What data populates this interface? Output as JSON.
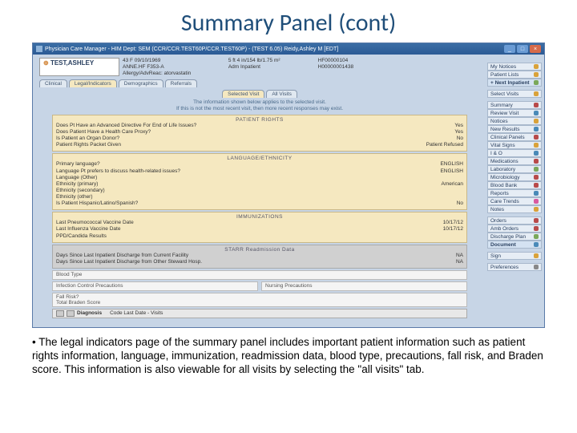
{
  "slide": {
    "title": "Summary Panel (cont)",
    "bullet": "• The legal indicators page of the summary panel includes important patient information such as patient rights information, language, immunization, readmission data, blood type, precautions, fall risk, and Braden score. This information is also viewable for all visits by selecting the \"all visits\" tab."
  },
  "window": {
    "title": "Physician Care Manager - HIM Dept: SEM (CCR/CCR.TEST60P/CCR.TEST60P) - (TEST 6.05)  Reidy,Ashley M [EDT]"
  },
  "patient": {
    "name": "TEST,ASHLEY",
    "line1": "43 F 09/10/1969",
    "line2": "ANNE.HF F353-A",
    "line3": "Allergy/AdvReac: atorvastatin",
    "vitals": "5 ft 4 in/154 lb/1.75 m²",
    "status": "Adm Inpatient",
    "id1": "HF00000104",
    "id2": "H00000001438"
  },
  "tabs_primary": {
    "clinical": "Clinical",
    "legal": "Legal/Indicators",
    "demo": "Demographics",
    "ref": "Referrals"
  },
  "tabs_visit": {
    "selected": "Selected Visit",
    "all": "All Visits"
  },
  "info_note": {
    "l1": "The information shown below applies to the selected visit.",
    "l2": "If this is not the most recent visit, then more recent responses may exist."
  },
  "sections": {
    "rights": {
      "title": "PATIENT RIGHTS",
      "rows": [
        {
          "k": "Does Pt Have an Advanced Directive For End of Life Issues?",
          "v": "Yes"
        },
        {
          "k": "Does Patient Have a Health Care Proxy?",
          "v": "Yes"
        },
        {
          "k": "Is Patient an Organ Donor?",
          "v": "No"
        },
        {
          "k": "Patient Rights Packet Given",
          "v": "Patient Refused"
        }
      ]
    },
    "lang": {
      "title": "LANGUAGE/ETHNICITY",
      "rows": [
        {
          "k": "Primary language?",
          "v": "ENGLISH"
        },
        {
          "k": "Language Pt prefers to discuss health-related issues?",
          "v": "ENGLISH"
        },
        {
          "k": "Language (Other)",
          "v": ""
        },
        {
          "k": "Ethnicity (primary)",
          "v": "American"
        },
        {
          "k": "Ethnicity (secondary)",
          "v": ""
        },
        {
          "k": "Ethnicity (other)",
          "v": ""
        },
        {
          "k": "Is Patient Hispanic/Latino/Spanish?",
          "v": "No"
        }
      ]
    },
    "immun": {
      "title": "IMMUNIZATIONS",
      "rows": [
        {
          "k": "Last Pneumococcal Vaccine Date",
          "v": "10/17/12"
        },
        {
          "k": "Last Influenza Vaccine Date",
          "v": "10/17/12"
        },
        {
          "k": "PPD/Candida Results",
          "v": ""
        }
      ]
    },
    "readmit": {
      "title": "STARR Readmission Data",
      "rows": [
        {
          "k": "Days Since Last Inpatient Discharge from Current Facility",
          "v": "NA"
        },
        {
          "k": "Days Since Last Inpatient Discharge from Other Steward Hosp.",
          "v": "NA"
        }
      ]
    },
    "blood": "Blood Type",
    "infect": "Infection Control Precautions",
    "nursing": "Nursing Precautions",
    "fall": "Fall Risk?",
    "braden": "Total Braden Score",
    "diag": {
      "label": "Diagnosis",
      "cols": "Code   Last Date - Visits"
    }
  },
  "sidebar": {
    "items": [
      {
        "label": "My Notices",
        "ico": "#d9a23a"
      },
      {
        "label": "Patient Lists",
        "ico": "#d9a23a"
      },
      {
        "label": "+ Next Inpatient",
        "ico": "#7aa85a",
        "sel": true
      }
    ],
    "items2": [
      {
        "label": "Select Visits",
        "ico": "#d9a23a"
      }
    ],
    "items3": [
      {
        "label": "Summary",
        "ico": "#b84a4a"
      },
      {
        "label": "Review Visit",
        "ico": "#4a8ab8"
      },
      {
        "label": "Notices",
        "ico": "#d9a23a"
      },
      {
        "label": "New Results",
        "ico": "#4a8ab8"
      },
      {
        "label": "Clinical Panels",
        "ico": "#b84a4a"
      },
      {
        "label": "Vital Signs",
        "ico": "#d9a23a"
      },
      {
        "label": "I & O",
        "ico": "#4a8ab8"
      },
      {
        "label": "Medications",
        "ico": "#b84a4a"
      },
      {
        "label": "Laboratory",
        "ico": "#7aa85a"
      },
      {
        "label": "Microbiology",
        "ico": "#b84a4a"
      },
      {
        "label": "Blood Bank",
        "ico": "#b84a4a"
      },
      {
        "label": "Reports",
        "ico": "#4a8ab8"
      },
      {
        "label": "Care Trends",
        "ico": "#d95aa0"
      },
      {
        "label": "Notes",
        "ico": "#d9a23a"
      }
    ],
    "items4": [
      {
        "label": "Orders",
        "ico": "#b84a4a"
      },
      {
        "label": "Amb Orders",
        "ico": "#b84a4a"
      },
      {
        "label": "Discharge Plan",
        "ico": "#7aa85a"
      },
      {
        "label": "Document",
        "ico": "#4a8ab8",
        "sel": true
      }
    ],
    "items5": [
      {
        "label": "Sign",
        "ico": "#d9a23a"
      }
    ],
    "items6": [
      {
        "label": "Preferences",
        "ico": "#888"
      }
    ]
  },
  "colors": {
    "slide_title": "#1f4e79",
    "section_bg": "#f5e8c0",
    "window_bg": "#c7d5e6"
  }
}
